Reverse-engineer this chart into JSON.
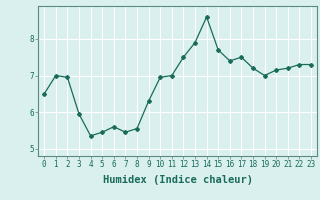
{
  "x": [
    0,
    1,
    2,
    3,
    4,
    5,
    6,
    7,
    8,
    9,
    10,
    11,
    12,
    13,
    14,
    15,
    16,
    17,
    18,
    19,
    20,
    21,
    22,
    23
  ],
  "y": [
    6.5,
    7.0,
    6.95,
    5.95,
    5.35,
    5.45,
    5.6,
    5.45,
    5.55,
    6.3,
    6.95,
    7.0,
    7.5,
    7.9,
    8.6,
    7.7,
    7.4,
    7.5,
    7.2,
    7.0,
    7.15,
    7.2,
    7.3,
    7.3
  ],
  "line_color": "#1a6b5a",
  "marker": "D",
  "markersize": 2.0,
  "linewidth": 0.9,
  "xlabel": "Humidex (Indice chaleur)",
  "ylabel": "",
  "ylim": [
    4.8,
    8.9
  ],
  "xlim": [
    -0.5,
    23.5
  ],
  "yticks": [
    5,
    6,
    7,
    8
  ],
  "xticks": [
    0,
    1,
    2,
    3,
    4,
    5,
    6,
    7,
    8,
    9,
    10,
    11,
    12,
    13,
    14,
    15,
    16,
    17,
    18,
    19,
    20,
    21,
    22,
    23
  ],
  "bg_color": "#d9f0ee",
  "grid_color": "#ffffff",
  "tick_fontsize": 5.5,
  "xlabel_fontsize": 7.5,
  "spine_color": "#5a8a80"
}
